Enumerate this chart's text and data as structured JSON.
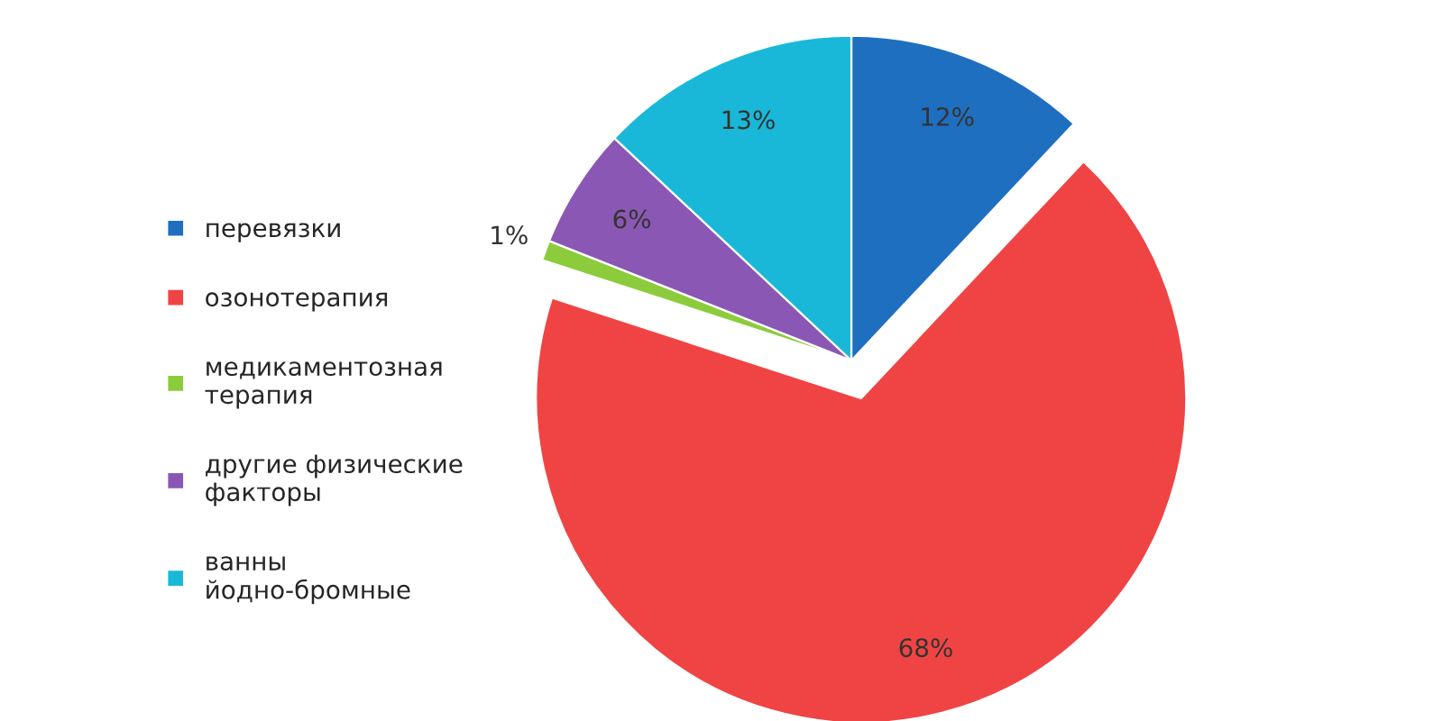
{
  "chart_data": {
    "type": "pie",
    "categories": [
      "перевязки",
      "озонотерапия",
      "медикаментозная терапия",
      "другие физические факторы",
      "ванны йодно-бромные"
    ],
    "values": [
      12,
      68,
      1,
      6,
      13
    ],
    "value_labels": [
      "12%",
      "68%",
      "1%",
      "6%",
      "13%"
    ],
    "colors": [
      "#1f6fc0",
      "#f04444",
      "#8ccc3c",
      "#8a58b4",
      "#1ab8d8"
    ],
    "legend": "left"
  }
}
